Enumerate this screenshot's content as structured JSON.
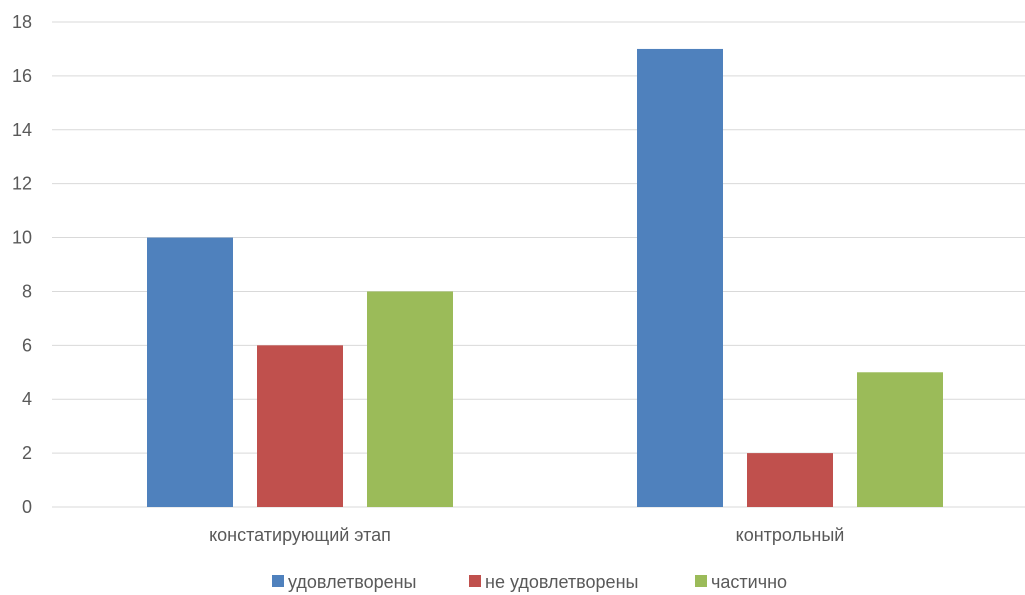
{
  "chart_data": {
    "type": "bar",
    "categories": [
      "констатирующий этап",
      "контрольный"
    ],
    "series": [
      {
        "name": "удовлетворены",
        "values": [
          10,
          17
        ],
        "color": "#4F81BD"
      },
      {
        "name": "не удовлетворены",
        "values": [
          6,
          2
        ],
        "color": "#C0504D"
      },
      {
        "name": "частично",
        "values": [
          8,
          5
        ],
        "color": "#9BBB59"
      }
    ],
    "ylim": [
      0,
      18
    ],
    "yticks": [
      0,
      2,
      4,
      6,
      8,
      10,
      12,
      14,
      16,
      18
    ],
    "grid": true,
    "legend_position": "bottom",
    "gridline_color": "#D9D9D9",
    "text_color": "#595959"
  }
}
